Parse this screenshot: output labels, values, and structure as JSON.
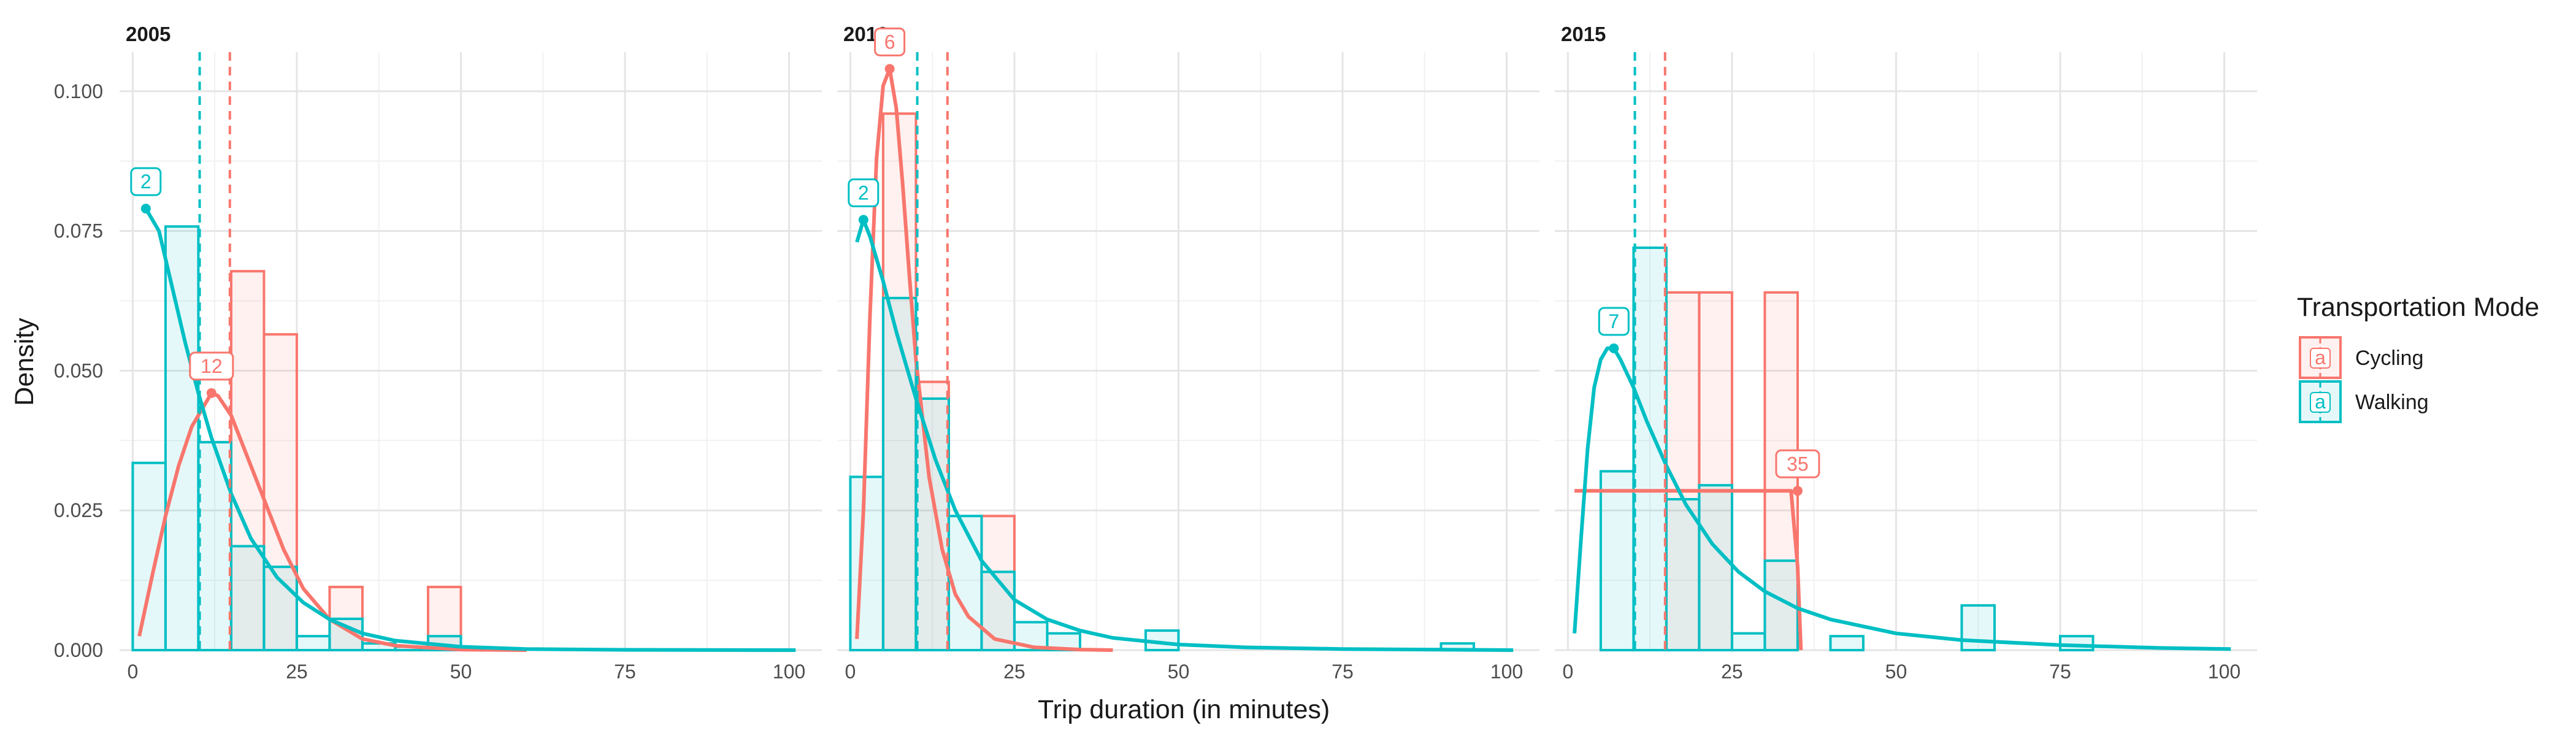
{
  "chart_data": {
    "type": "histogram-density",
    "facets": [
      "2005",
      "2010",
      "2015"
    ],
    "xlabel": "Trip duration (in minutes)",
    "ylabel": "Density",
    "xlim": [
      -2,
      105
    ],
    "ylim": [
      0,
      0.107
    ],
    "xticks": [
      0,
      25,
      50,
      75,
      100
    ],
    "yticks": [
      0.0,
      0.025,
      0.05,
      0.075,
      0.1
    ],
    "ytick_labels": [
      "0.000",
      "0.025",
      "0.050",
      "0.075",
      "0.100"
    ],
    "bin_width": 5,
    "grid": true,
    "legend": {
      "title": "Transportation Mode",
      "position": "right",
      "entries": [
        {
          "name": "Cycling",
          "color": "#F8766D",
          "glyph": "a"
        },
        {
          "name": "Walking",
          "color": "#00BFC4",
          "glyph": "a"
        }
      ]
    },
    "panels": [
      {
        "facet": "2005",
        "series": [
          {
            "name": "Cycling",
            "color": "#F8766D",
            "bins": [
              [
                15,
                0.0678
              ],
              [
                20,
                0.0565
              ],
              [
                30,
                0.0113
              ],
              [
                45,
                0.0113
              ]
            ],
            "mean": 14.8,
            "peak": {
              "x": 12,
              "y": 0.046,
              "label": "12"
            },
            "curve": [
              [
                1,
                0.0025
              ],
              [
                3,
                0.0135
              ],
              [
                5,
                0.024
              ],
              [
                7,
                0.033
              ],
              [
                9,
                0.04
              ],
              [
                11,
                0.044
              ],
              [
                12,
                0.046
              ],
              [
                13,
                0.0455
              ],
              [
                15,
                0.042
              ],
              [
                17,
                0.036
              ],
              [
                20,
                0.027
              ],
              [
                23,
                0.018
              ],
              [
                26,
                0.011
              ],
              [
                30,
                0.0055
              ],
              [
                35,
                0.002
              ],
              [
                40,
                0.0008
              ],
              [
                50,
                0.0001
              ],
              [
                60,
                0.0
              ]
            ]
          },
          {
            "name": "Walking",
            "color": "#00BFC4",
            "bins": [
              [
                0,
                0.0335
              ],
              [
                5,
                0.0758
              ],
              [
                10,
                0.0372
              ],
              [
                15,
                0.0186
              ],
              [
                20,
                0.0149
              ],
              [
                25,
                0.0025
              ],
              [
                30,
                0.0056
              ],
              [
                35,
                0.0012
              ],
              [
                40,
                0.0006
              ],
              [
                45,
                0.0025
              ]
            ],
            "mean": 10.2,
            "peak": {
              "x": 2,
              "y": 0.079,
              "label": "2"
            },
            "curve": [
              [
                2,
                0.079
              ],
              [
                4,
                0.075
              ],
              [
                6,
                0.065
              ],
              [
                8,
                0.055
              ],
              [
                10,
                0.046
              ],
              [
                12,
                0.038
              ],
              [
                15,
                0.028
              ],
              [
                18,
                0.02
              ],
              [
                22,
                0.013
              ],
              [
                26,
                0.0085
              ],
              [
                30,
                0.0055
              ],
              [
                35,
                0.003
              ],
              [
                40,
                0.0017
              ],
              [
                50,
                0.0006
              ],
              [
                60,
                0.0002
              ],
              [
                75,
                5e-05
              ],
              [
                101,
                0.0
              ]
            ]
          }
        ]
      },
      {
        "facet": "2010",
        "series": [
          {
            "name": "Cycling",
            "color": "#F8766D",
            "bins": [
              [
                5,
                0.096
              ],
              [
                10,
                0.048
              ],
              [
                20,
                0.024
              ]
            ],
            "mean": 14.8,
            "peak": {
              "x": 6,
              "y": 0.104,
              "label": "6"
            },
            "curve": [
              [
                1,
                0.002
              ],
              [
                2,
                0.025
              ],
              [
                3,
                0.06
              ],
              [
                4,
                0.088
              ],
              [
                5,
                0.101
              ],
              [
                6,
                0.104
              ],
              [
                7,
                0.097
              ],
              [
                8,
                0.083
              ],
              [
                9,
                0.067
              ],
              [
                10,
                0.052
              ],
              [
                12,
                0.031
              ],
              [
                14,
                0.018
              ],
              [
                16,
                0.01
              ],
              [
                18,
                0.006
              ],
              [
                22,
                0.002
              ],
              [
                28,
                0.0005
              ],
              [
                35,
                0.0001
              ],
              [
                40,
                0.0
              ]
            ]
          },
          {
            "name": "Walking",
            "color": "#00BFC4",
            "bins": [
              [
                0,
                0.031
              ],
              [
                5,
                0.063
              ],
              [
                10,
                0.045
              ],
              [
                15,
                0.024
              ],
              [
                20,
                0.014
              ],
              [
                25,
                0.005
              ],
              [
                30,
                0.003
              ],
              [
                45,
                0.0035
              ],
              [
                90,
                0.0012
              ]
            ],
            "mean": 10.2,
            "peak": {
              "x": 2,
              "y": 0.077,
              "label": "2"
            },
            "curve": [
              [
                1,
                0.073
              ],
              [
                2,
                0.077
              ],
              [
                3,
                0.074
              ],
              [
                5,
                0.066
              ],
              [
                7,
                0.057
              ],
              [
                10,
                0.045
              ],
              [
                13,
                0.034
              ],
              [
                16,
                0.025
              ],
              [
                20,
                0.016
              ],
              [
                25,
                0.009
              ],
              [
                30,
                0.0055
              ],
              [
                35,
                0.0035
              ],
              [
                40,
                0.0022
              ],
              [
                50,
                0.001
              ],
              [
                60,
                0.0005
              ],
              [
                75,
                0.0002
              ],
              [
                101,
                0.0
              ]
            ]
          }
        ]
      },
      {
        "facet": "2015",
        "series": [
          {
            "name": "Cycling",
            "color": "#F8766D",
            "bins": [
              [
                15,
                0.064
              ],
              [
                20,
                0.064
              ],
              [
                30,
                0.064
              ]
            ],
            "mean": 14.8,
            "peak": {
              "x": 35,
              "y": 0.0285,
              "label": "35"
            },
            "curve": [
              [
                1,
                0.0285
              ],
              [
                34,
                0.0285
              ],
              [
                35,
                0.015
              ],
              [
                35.5,
                0.0
              ]
            ]
          },
          {
            "name": "Walking",
            "color": "#00BFC4",
            "bins": [
              [
                5,
                0.032
              ],
              [
                10,
                0.072
              ],
              [
                15,
                0.027
              ],
              [
                20,
                0.0295
              ],
              [
                25,
                0.003
              ],
              [
                30,
                0.016
              ],
              [
                40,
                0.0025
              ],
              [
                60,
                0.008
              ],
              [
                75,
                0.0025
              ]
            ],
            "mean": 10.2,
            "peak": {
              "x": 7,
              "y": 0.054,
              "label": "7"
            },
            "curve": [
              [
                1,
                0.003
              ],
              [
                2,
                0.02
              ],
              [
                3,
                0.036
              ],
              [
                4,
                0.047
              ],
              [
                5,
                0.052
              ],
              [
                6,
                0.054
              ],
              [
                7,
                0.054
              ],
              [
                8,
                0.052
              ],
              [
                10,
                0.047
              ],
              [
                12,
                0.041
              ],
              [
                15,
                0.033
              ],
              [
                18,
                0.026
              ],
              [
                22,
                0.019
              ],
              [
                26,
                0.014
              ],
              [
                30,
                0.0105
              ],
              [
                35,
                0.0075
              ],
              [
                40,
                0.0055
              ],
              [
                50,
                0.003
              ],
              [
                60,
                0.0018
              ],
              [
                75,
                0.0009
              ],
              [
                90,
                0.0004
              ],
              [
                101,
                0.0002
              ]
            ]
          }
        ]
      }
    ]
  }
}
